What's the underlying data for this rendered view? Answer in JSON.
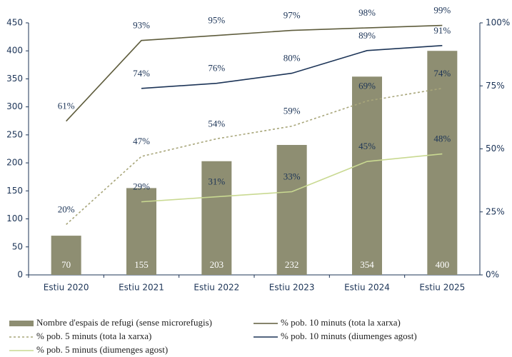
{
  "chart_data": {
    "type": "bar",
    "categories": [
      "Estiu 2020",
      "Estiu 2021",
      "Estiu 2022",
      "Estiu 2023",
      "Estiu 2024",
      "Estiu 2025"
    ],
    "series": [
      {
        "name": "Nombre d'espais de refugi (sense microrefugis)",
        "type": "bar",
        "color": "#8e8e72",
        "values": [
          70,
          155,
          203,
          232,
          354,
          400
        ]
      },
      {
        "name": "% pob. 10 minuts (tota la xarxa)",
        "type": "line",
        "axis": "y2",
        "color": "#5e5c3c",
        "values": [
          61,
          93,
          95,
          97,
          98,
          99
        ],
        "value_labels": [
          "61%",
          "93%",
          "95%",
          "97%",
          "98%",
          "99%"
        ]
      },
      {
        "name": "% pob. 5 minuts (tota la xarxa)",
        "type": "line",
        "axis": "y2",
        "dashed": true,
        "color": "#a8a67a",
        "values": [
          20,
          47,
          54,
          59,
          69,
          74
        ],
        "value_labels": [
          "20%",
          "47%",
          "54%",
          "59%",
          "69%",
          "74%"
        ]
      },
      {
        "name": "% pob. 10 minuts (diumenges agost)",
        "type": "line",
        "axis": "y2",
        "color": "#1c3457",
        "values": [
          null,
          74,
          76,
          80,
          89,
          91
        ],
        "value_labels": [
          null,
          "74%",
          "76%",
          "80%",
          "89%",
          "91%"
        ]
      },
      {
        "name": "% pob. 5 minuts (diumenges agost)",
        "type": "line",
        "axis": "y2",
        "color": "#c9d991",
        "values": [
          null,
          29,
          31,
          33,
          45,
          48
        ],
        "value_labels": [
          null,
          "29%",
          "31%",
          "33%",
          "45%",
          "48%"
        ]
      }
    ],
    "ylim": [
      0,
      450
    ],
    "yticks": [
      0,
      50,
      100,
      150,
      200,
      250,
      300,
      350,
      400,
      450
    ],
    "y2lim": [
      0,
      100
    ],
    "y2ticks": [
      {
        "value": 0,
        "label": "0%"
      },
      {
        "value": 25,
        "label": "25%"
      },
      {
        "value": 50,
        "label": "50%"
      },
      {
        "value": 75,
        "label": "75%"
      },
      {
        "value": 100,
        "label": "100%"
      }
    ],
    "legend": "bottom"
  }
}
